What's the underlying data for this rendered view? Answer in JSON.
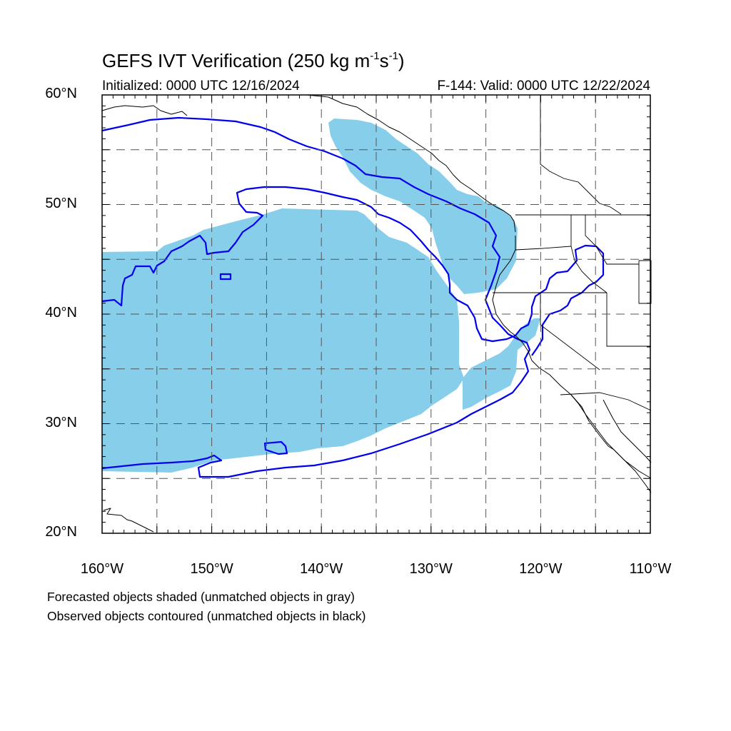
{
  "title": {
    "text": "GEFS IVT Verification (250 kg m",
    "sup1": "-1",
    "mid": "s",
    "sup2": "-1",
    "end": ")"
  },
  "subtitle_left": "Initialized: 0000 UTC 12/16/2024",
  "subtitle_right": "F-144: Valid: 0000 UTC 12/22/2024",
  "y_ticks": [
    {
      "value": 60,
      "label": "60°N"
    },
    {
      "value": 50,
      "label": "50°N"
    },
    {
      "value": 40,
      "label": "40°N"
    },
    {
      "value": 30,
      "label": "30°N"
    },
    {
      "value": 20,
      "label": "20°N"
    }
  ],
  "x_ticks": [
    {
      "value": -160,
      "label": "160°W"
    },
    {
      "value": -150,
      "label": "150°W"
    },
    {
      "value": -140,
      "label": "140°W"
    },
    {
      "value": -130,
      "label": "130°W"
    },
    {
      "value": -120,
      "label": "120°W"
    },
    {
      "value": -110,
      "label": "110°W"
    }
  ],
  "legend": {
    "forecast": "Forecasted objects shaded (unmatched objects in gray)",
    "observed": "Observed objects contoured (unmatched objects in black)"
  },
  "map": {
    "lon_range": [
      -160,
      -110
    ],
    "lat_range": [
      20,
      60
    ],
    "grid_lines": "dashed",
    "grid_lon_step": 5,
    "grid_lat_step": 5
  },
  "colors": {
    "forecast_fill": "#87ceeb",
    "observed_contour": "#0000ee",
    "coastline": "#000000",
    "grid": "#555555"
  }
}
